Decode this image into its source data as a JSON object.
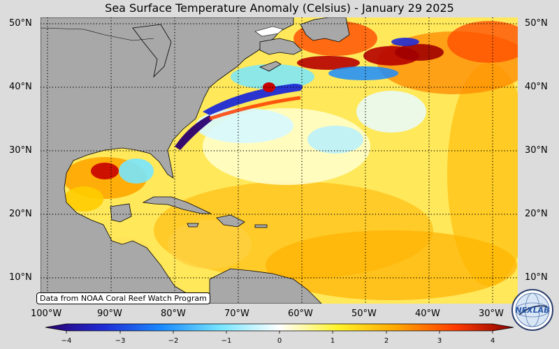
{
  "title": "Sea Surface Temperature Anomaly (Celsius) - January 29 2025",
  "credit": "Data from NOAA Coral Reef Watch Program",
  "lat_labels": [
    "50°N",
    "40°N",
    "30°N",
    "20°N",
    "10°N"
  ],
  "lon_labels": [
    "100°W",
    "90°W",
    "80°W",
    "70°W",
    "60°W",
    "50°W",
    "40°W",
    "30°W"
  ],
  "colorbar": {
    "min": -4,
    "max": 4,
    "ticks": [
      "−4",
      "−3",
      "−2",
      "−1",
      "0",
      "1",
      "2",
      "3",
      "4"
    ],
    "colors": [
      "#2a0070",
      "#1f2bd6",
      "#1a8cff",
      "#78e6ff",
      "#ffffff",
      "#fff32a",
      "#ffa600",
      "#ff3c00",
      "#8a0000"
    ]
  },
  "logo": {
    "text": "NEXLAB",
    "icon": "globe-logo-icon"
  },
  "colors": {
    "land": "#a8a8a8",
    "ocean_base": "#fff3a0",
    "background": "#dcdcdc"
  }
}
